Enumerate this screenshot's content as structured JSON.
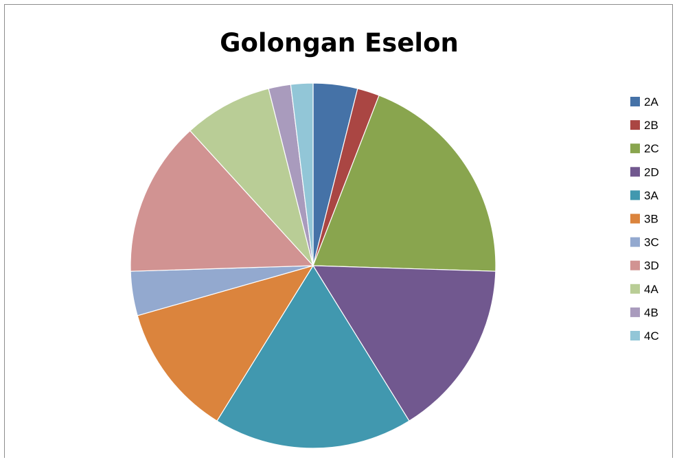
{
  "chart_data": {
    "type": "pie",
    "title": "Golongan Eselon",
    "categories": [
      "2A",
      "2B",
      "2C",
      "2D",
      "3A",
      "3B",
      "3C",
      "3D",
      "4A",
      "4B",
      "4C"
    ],
    "values": [
      2,
      1,
      10,
      8,
      9,
      6,
      2,
      7,
      4,
      1,
      1
    ],
    "colors": [
      "#4572A7",
      "#AA4643",
      "#89A54E",
      "#71588F",
      "#4198AF",
      "#DB843D",
      "#93A9CF",
      "#D19392",
      "#B9CD96",
      "#A99BBD",
      "#92C6D7"
    ],
    "legend_position": "right",
    "start_angle": "12 o'clock",
    "direction": "clockwise"
  }
}
